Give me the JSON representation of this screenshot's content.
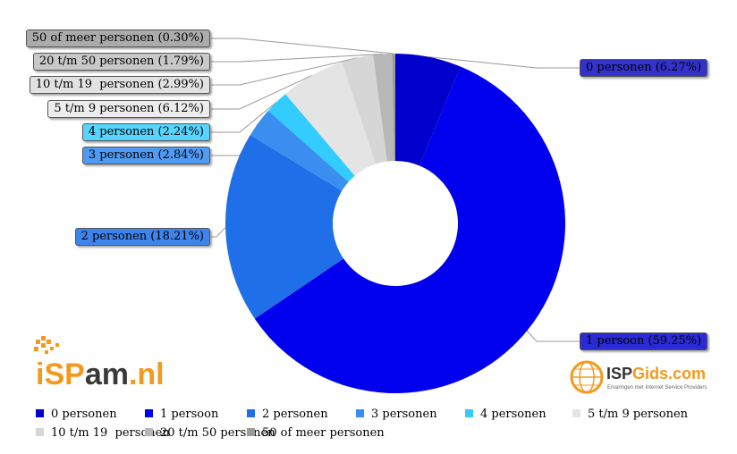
{
  "chart_data": {
    "type": "donut",
    "title": "",
    "series": [
      {
        "label": "0 personen",
        "value": 6.27,
        "text": "0 personen (6.27%)",
        "color": "#0000cc",
        "label_bg": "#3333cc"
      },
      {
        "label": "1 persoon",
        "value": 59.25,
        "text": "1 persoon (59.25%)",
        "color": "#0000ee",
        "label_bg": "#2a2ad6"
      },
      {
        "label": "2 personen",
        "value": 18.21,
        "text": "2 personen (18.21%)",
        "color": "#1e6fe8",
        "label_bg": "#3d84ec"
      },
      {
        "label": "3 personen",
        "value": 2.84,
        "text": "3 personen (2.84%)",
        "color": "#3a8ef0",
        "label_bg": "#4f9af2"
      },
      {
        "label": "4 personen",
        "value": 2.24,
        "text": "4 personen (2.24%)",
        "color": "#33ccff",
        "label_bg": "#55d5ff"
      },
      {
        "label": "5 t/m 9 personen",
        "value": 6.12,
        "text": "5 t/m 9 personen (6.12%)",
        "color": "#e4e4e4",
        "label_bg": "#ececec"
      },
      {
        "label": "10 t/m 19  personen",
        "value": 2.99,
        "text": "10 t/m 19  personen (2.99%)",
        "color": "#d6d6d6",
        "label_bg": "#e2e2e2"
      },
      {
        "label": "20 t/m 50 personen",
        "value": 1.79,
        "text": "20 t/m 50 personen (1.79%)",
        "color": "#b8b8b8",
        "label_bg": "#c8c8c8"
      },
      {
        "label": "50 of meer personen",
        "value": 0.3,
        "text": "50 of meer personen (0.30%)",
        "color": "#9a9a9a",
        "label_bg": "#ababab"
      }
    ]
  },
  "logos": {
    "ispam": {
      "part1": "iSP",
      "part2": "am",
      "part3": ".nl"
    },
    "ispgids": {
      "brand1": "ISP",
      "brand2": "Gids.com",
      "tagline": "Ervaringen met Internet Service Providers"
    }
  }
}
